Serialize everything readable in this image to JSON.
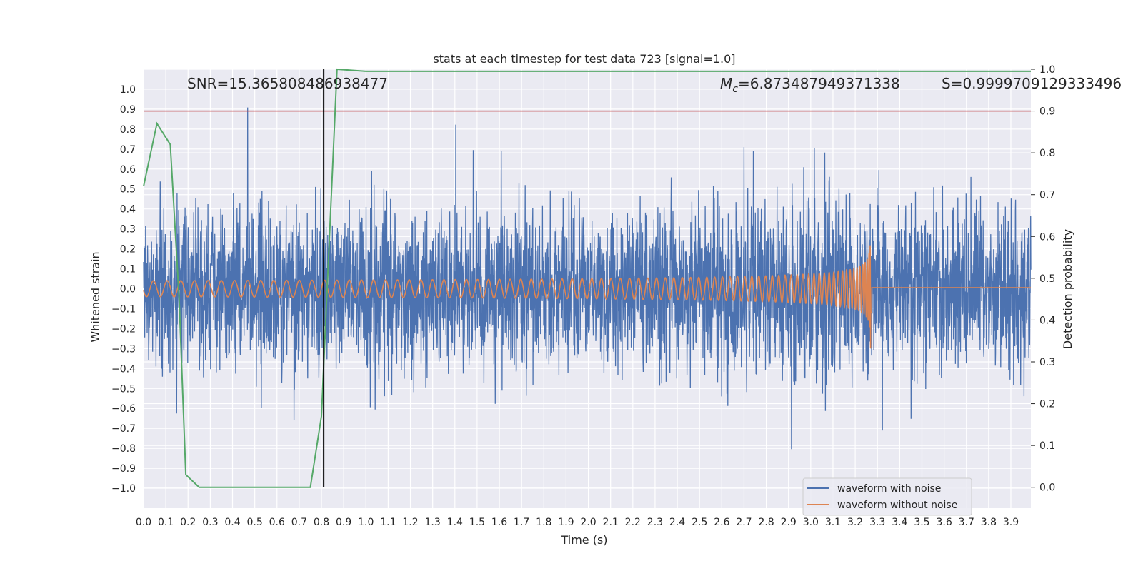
{
  "chart_data": {
    "type": "line",
    "title": "stats at each timestep for test data 723 [signal=1.0]",
    "xlabel": "Time (s)",
    "ylabel": "Whitened strain",
    "y2label": "Detection probability",
    "xlim": [
      0.0,
      3.99
    ],
    "ylim": [
      -1.1,
      1.1
    ],
    "y2lim": [
      -0.05,
      1.0
    ],
    "xticks": [
      "0.0",
      "0.1",
      "0.2",
      "0.3",
      "0.4",
      "0.5",
      "0.6",
      "0.7",
      "0.8",
      "0.9",
      "1.0",
      "1.1",
      "1.2",
      "1.3",
      "1.4",
      "1.5",
      "1.6",
      "1.7",
      "1.8",
      "1.9",
      "2.0",
      "2.1",
      "2.2",
      "2.3",
      "2.4",
      "2.5",
      "2.6",
      "2.7",
      "2.8",
      "2.9",
      "3.0",
      "3.1",
      "3.2",
      "3.3",
      "3.4",
      "3.5",
      "3.6",
      "3.7",
      "3.8",
      "3.9"
    ],
    "yticks": [
      "1.0",
      "0.9",
      "0.8",
      "0.7",
      "0.6",
      "0.5",
      "0.4",
      "0.3",
      "0.2",
      "0.1",
      "0.0",
      "−0.1",
      "−0.2",
      "−0.3",
      "−0.4",
      "−0.5",
      "−0.6",
      "−0.7",
      "−0.8",
      "−0.9",
      "−1.0"
    ],
    "y2ticks": [
      "0.0",
      "0.1",
      "0.2",
      "0.3",
      "0.4",
      "0.5",
      "0.6",
      "0.7",
      "0.8",
      "0.9",
      "1.0"
    ],
    "threshold": 0.9,
    "threshold_color": "#c44e52",
    "detection_time": 0.81,
    "detection_line_color": "#000000",
    "annotations": {
      "snr": "SNR=15.365808486938477",
      "mc_symbol": "M",
      "mc_sub": "c",
      "mc_value": "=6.873487949371338",
      "s": "S=0.9999709129333496"
    },
    "series": [
      {
        "name": "waveform with noise",
        "color": "#4c72b0",
        "description": "noisy whitened strain, amplitude roughly ±0.5, peaks up to about ±1.0, over 0.0–3.99 s"
      },
      {
        "name": "waveform without noise",
        "color": "#dd8452",
        "description": "chirp signal, amplitude ~0.04 at 0 s growing to ~0.4 at merger near 3.27 s, flat ~0.0 afterwards"
      },
      {
        "name": "detection probability",
        "color": "#55a868",
        "axis": "right",
        "x": [
          0.0,
          0.06,
          0.12,
          0.16,
          0.19,
          0.25,
          0.75,
          0.8,
          0.87,
          1.0,
          2.0,
          3.0,
          3.99
        ],
        "y": [
          0.72,
          0.87,
          0.82,
          0.45,
          0.03,
          0.0,
          0.0,
          0.17,
          1.0,
          0.995,
          0.995,
          0.995,
          0.995
        ]
      }
    ],
    "legend": [
      "waveform with noise",
      "waveform without noise"
    ],
    "legend_position": "lower right"
  }
}
